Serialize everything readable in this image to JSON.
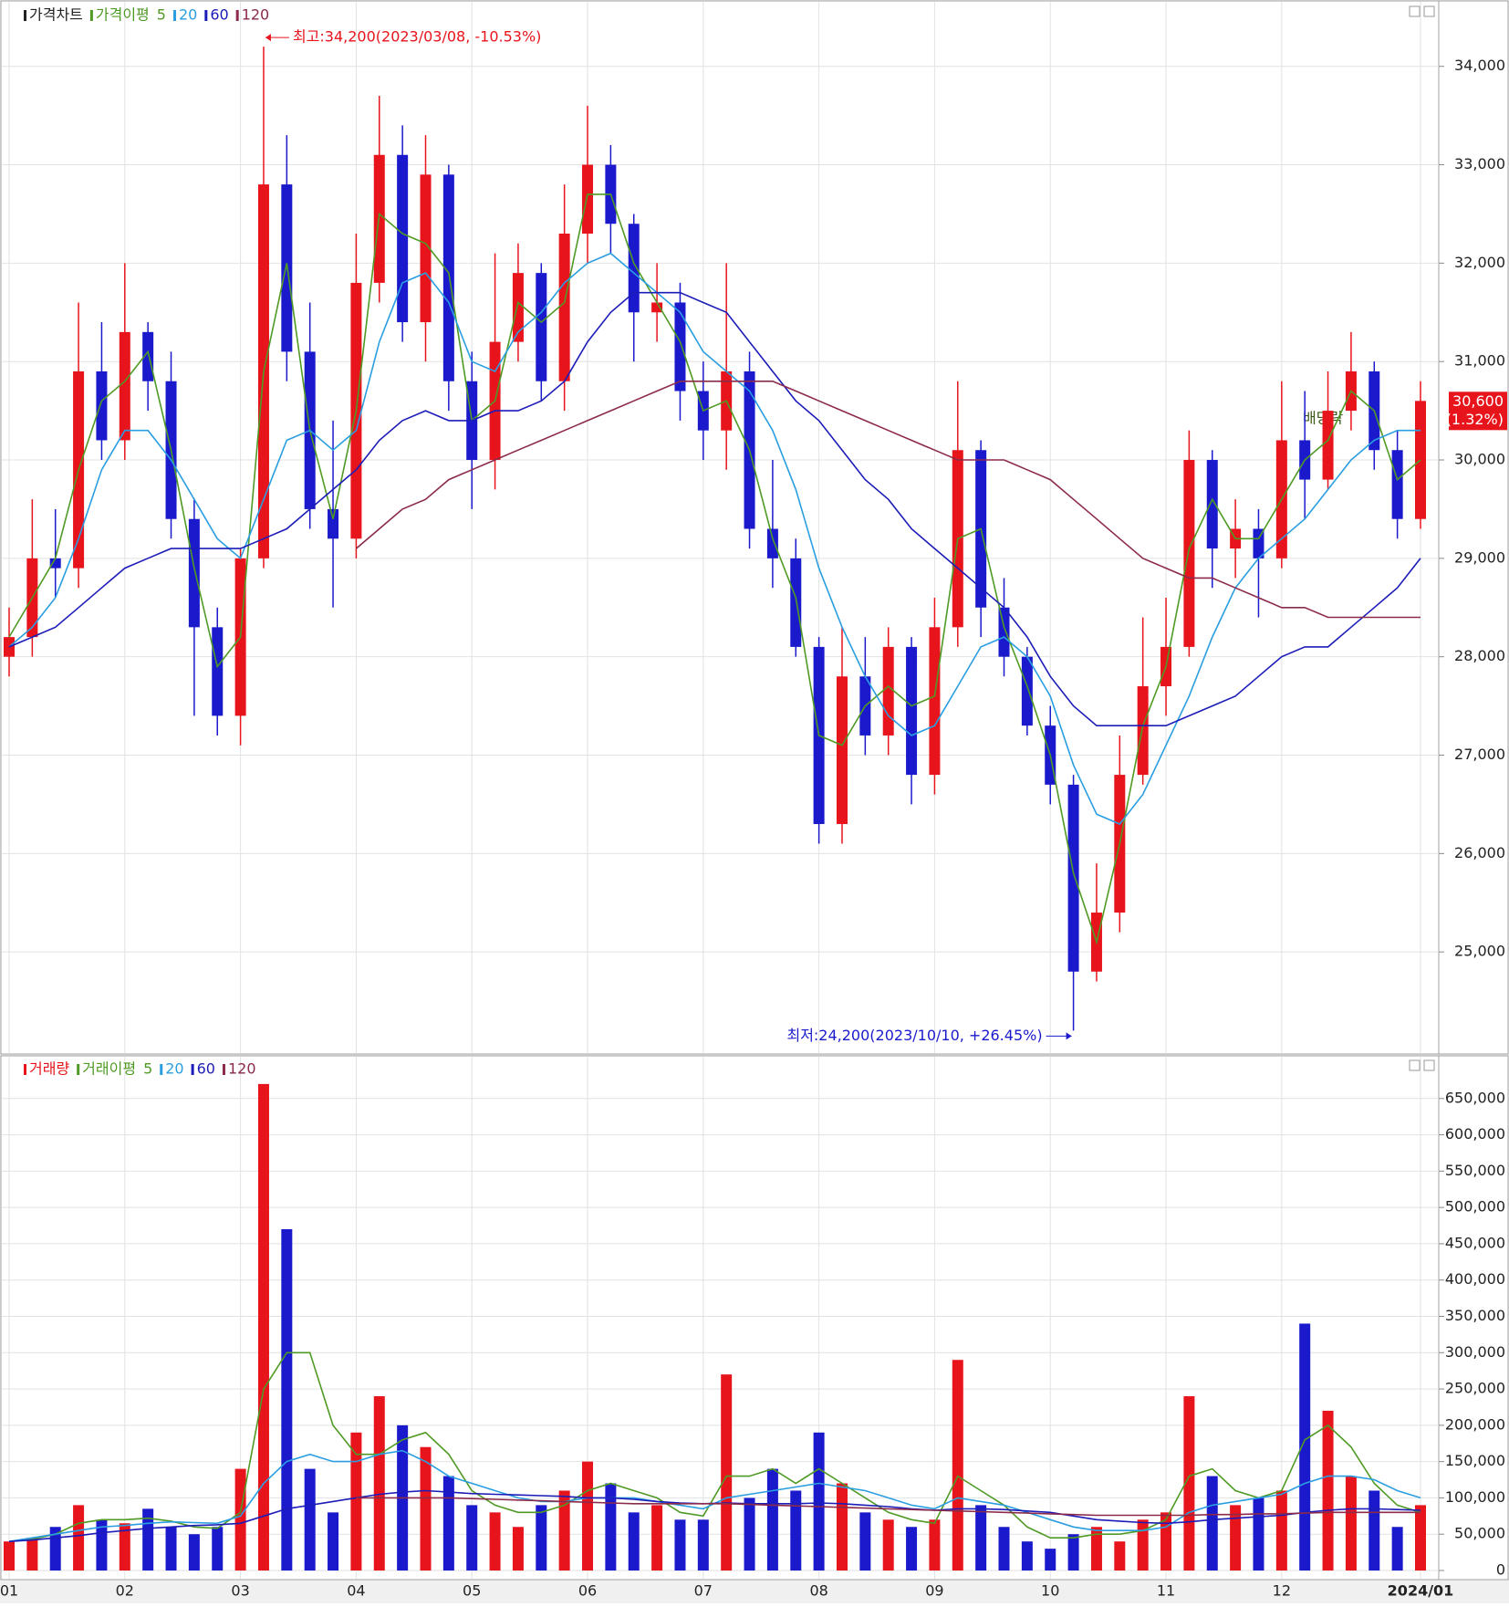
{
  "chart_data": [
    {
      "type": "candlestick",
      "label": "가격차트",
      "ma_label": "가격이평",
      "up_color": "#e8141c",
      "down_color": "#1a1acc",
      "open": [
        28000,
        28200,
        29000,
        28900,
        30900,
        30200,
        31300,
        30800,
        29400,
        28300,
        27400,
        29000,
        32800,
        31100,
        29500,
        29200,
        31800,
        33100,
        31400,
        32900,
        30800,
        30000,
        31200,
        31900,
        30800,
        32300,
        33000,
        32400,
        31500,
        31600,
        30700,
        30300,
        30900,
        29300,
        29000,
        28100,
        26300,
        27800,
        27200,
        28100,
        26800,
        28300,
        30100,
        28500,
        28000,
        27300,
        26700,
        24800,
        25400,
        26800,
        27700,
        28100,
        30000,
        29100,
        29300,
        29000,
        30200,
        29800,
        30500,
        30900,
        30100,
        29400
      ],
      "high": [
        28500,
        29600,
        29500,
        31600,
        31400,
        32000,
        31400,
        31100,
        29600,
        28500,
        29100,
        34200,
        33300,
        31600,
        30400,
        32300,
        33700,
        33400,
        33300,
        33000,
        31100,
        32100,
        32200,
        32000,
        32800,
        33600,
        33200,
        32500,
        32000,
        31800,
        31000,
        32000,
        31100,
        30000,
        29200,
        28200,
        28300,
        28200,
        28300,
        28200,
        28600,
        30800,
        30200,
        28800,
        28100,
        27500,
        26800,
        25900,
        27200,
        28400,
        28600,
        30300,
        30100,
        29600,
        29500,
        30800,
        30700,
        30900,
        31300,
        31000,
        30300,
        30800
      ],
      "low": [
        27800,
        28000,
        28600,
        28700,
        30000,
        30000,
        30500,
        29200,
        27400,
        27200,
        27100,
        28900,
        30800,
        29300,
        28500,
        29000,
        31600,
        31200,
        31000,
        30500,
        29500,
        29700,
        31000,
        30600,
        30500,
        32000,
        32100,
        31000,
        31200,
        30400,
        30000,
        29900,
        29100,
        28700,
        28000,
        26100,
        26100,
        27000,
        27000,
        26500,
        26600,
        28100,
        28200,
        27800,
        27200,
        26500,
        24200,
        24700,
        25200,
        26700,
        27400,
        28000,
        28700,
        28800,
        28400,
        28900,
        29400,
        29700,
        30300,
        29900,
        29200,
        29300
      ],
      "close": [
        28200,
        29000,
        28900,
        30900,
        30200,
        31300,
        30800,
        29400,
        28300,
        27400,
        29000,
        32800,
        31100,
        29500,
        29200,
        31800,
        33100,
        31400,
        32900,
        30800,
        30000,
        31200,
        31900,
        30800,
        32300,
        33000,
        32400,
        31500,
        31600,
        30700,
        30300,
        30900,
        29300,
        29000,
        28100,
        26300,
        27800,
        27200,
        28100,
        26800,
        28300,
        30100,
        28500,
        28000,
        27300,
        26700,
        24800,
        25400,
        26800,
        27700,
        28100,
        30000,
        29100,
        29300,
        29000,
        30200,
        29800,
        30500,
        30900,
        30100,
        29400,
        30600
      ],
      "ma_series": [
        {
          "name": "5",
          "color": "#4f9a24",
          "values": [
            28200,
            28600,
            29000,
            29900,
            30600,
            30800,
            31100,
            30100,
            28900,
            27900,
            28200,
            30900,
            32000,
            30300,
            29400,
            30500,
            32500,
            32300,
            32200,
            31900,
            30400,
            30600,
            31600,
            31400,
            31600,
            32700,
            32700,
            32000,
            31600,
            31200,
            30500,
            30600,
            30100,
            29200,
            28600,
            27200,
            27100,
            27500,
            27700,
            27500,
            27600,
            29200,
            29300,
            28300,
            27700,
            27000,
            25800,
            25100,
            26100,
            27300,
            27900,
            29100,
            29600,
            29200,
            29200,
            29600,
            30000,
            30200,
            30700,
            30500,
            29800,
            30000
          ]
        },
        {
          "name": "20",
          "color": "#2a9ee0",
          "values": [
            28100,
            28300,
            28600,
            29200,
            29900,
            30300,
            30300,
            30000,
            29600,
            29200,
            29000,
            29600,
            30200,
            30300,
            30100,
            30300,
            31200,
            31800,
            31900,
            31600,
            31000,
            30900,
            31300,
            31500,
            31800,
            32000,
            32100,
            31900,
            31700,
            31500,
            31100,
            30900,
            30700,
            30300,
            29700,
            28900,
            28300,
            27800,
            27400,
            27200,
            27300,
            27700,
            28100,
            28200,
            28000,
            27600,
            26900,
            26400,
            26300,
            26600,
            27100,
            27600,
            28200,
            28700,
            29000,
            29200,
            29400,
            29700,
            30000,
            30200,
            30300,
            30300
          ]
        },
        {
          "name": "60",
          "color": "#1c1cb8",
          "values": [
            28100,
            28200,
            28300,
            28500,
            28700,
            28900,
            29000,
            29100,
            29100,
            29100,
            29100,
            29200,
            29300,
            29500,
            29700,
            29900,
            30200,
            30400,
            30500,
            30400,
            30400,
            30500,
            30500,
            30600,
            30800,
            31200,
            31500,
            31700,
            31700,
            31700,
            31600,
            31500,
            31200,
            30900,
            30600,
            30400,
            30100,
            29800,
            29600,
            29300,
            29100,
            28900,
            28700,
            28500,
            28200,
            27800,
            27500,
            27300,
            27300,
            27300,
            27300,
            27400,
            27500,
            27600,
            27800,
            28000,
            28100,
            28100,
            28300,
            28500,
            28700,
            29000
          ]
        },
        {
          "name": "120",
          "color": "#8b2a4a",
          "values": [
            null,
            null,
            null,
            null,
            null,
            null,
            null,
            null,
            null,
            null,
            null,
            null,
            null,
            null,
            null,
            29100,
            29300,
            29500,
            29600,
            29800,
            29900,
            30000,
            30100,
            30200,
            30300,
            30400,
            30500,
            30600,
            30700,
            30800,
            30800,
            30800,
            30800,
            30800,
            30700,
            30600,
            30500,
            30400,
            30300,
            30200,
            30100,
            30000,
            30000,
            30000,
            29900,
            29800,
            29600,
            29400,
            29200,
            29000,
            28900,
            28800,
            28800,
            28700,
            28600,
            28500,
            28500,
            28400,
            28400,
            28400,
            28400,
            28400
          ]
        }
      ],
      "ylim": [
        24000,
        34600
      ],
      "yticks": [
        {
          "value": 25000,
          "label": "25,000"
        },
        {
          "value": 26000,
          "label": "26,000"
        },
        {
          "value": 27000,
          "label": "27,000"
        },
        {
          "value": 28000,
          "label": "28,000"
        },
        {
          "value": 29000,
          "label": "29,000"
        },
        {
          "value": 30000,
          "label": "30,000"
        },
        {
          "value": 31000,
          "label": "31,000"
        },
        {
          "value": 32000,
          "label": "32,000"
        },
        {
          "value": 33000,
          "label": "33,000"
        },
        {
          "value": 34000,
          "label": "34,000"
        }
      ],
      "grid": true,
      "high_label": "최고:34,200(2023/03/08, -10.53%)",
      "low_label": "최저:24,200(2023/10/10, +26.45%)",
      "last_label": "30,600",
      "last_change": "(1.32%)",
      "note": "배당락"
    },
    {
      "type": "bar",
      "label": "거래량",
      "ma_label": "거래이평",
      "categories": [
        "01",
        null,
        null,
        null,
        null,
        "02",
        null,
        null,
        null,
        null,
        "03",
        null,
        null,
        null,
        null,
        "04",
        null,
        null,
        null,
        null,
        "05",
        null,
        null,
        null,
        null,
        "06",
        null,
        null,
        null,
        null,
        "07",
        null,
        null,
        null,
        null,
        "08",
        null,
        null,
        null,
        null,
        "09",
        null,
        null,
        null,
        null,
        "10",
        null,
        null,
        null,
        null,
        "11",
        null,
        null,
        null,
        null,
        "12",
        null,
        null,
        null,
        null,
        null,
        "2024/01"
      ],
      "values": [
        40000,
        45000,
        60000,
        90000,
        70000,
        65000,
        85000,
        60000,
        50000,
        60000,
        140000,
        670000,
        470000,
        140000,
        80000,
        190000,
        240000,
        200000,
        170000,
        130000,
        90000,
        80000,
        60000,
        90000,
        110000,
        150000,
        120000,
        80000,
        90000,
        70000,
        70000,
        270000,
        100000,
        140000,
        110000,
        190000,
        120000,
        80000,
        70000,
        60000,
        70000,
        290000,
        90000,
        60000,
        40000,
        30000,
        50000,
        60000,
        40000,
        70000,
        80000,
        240000,
        130000,
        90000,
        100000,
        110000,
        340000,
        220000,
        130000,
        110000,
        60000,
        90000
      ],
      "ma_series": [
        {
          "name": "5",
          "color": "#4f9a24",
          "values": [
            40000,
            43000,
            50000,
            65000,
            70000,
            70000,
            72000,
            68000,
            60000,
            58000,
            80000,
            250000,
            300000,
            300000,
            200000,
            160000,
            160000,
            180000,
            190000,
            160000,
            110000,
            90000,
            80000,
            80000,
            90000,
            110000,
            120000,
            110000,
            100000,
            80000,
            75000,
            130000,
            130000,
            140000,
            120000,
            140000,
            120000,
            100000,
            80000,
            70000,
            65000,
            130000,
            110000,
            90000,
            60000,
            45000,
            45000,
            50000,
            50000,
            55000,
            70000,
            130000,
            140000,
            110000,
            100000,
            110000,
            180000,
            200000,
            170000,
            120000,
            90000,
            80000
          ]
        },
        {
          "name": "20",
          "color": "#2a9ee0",
          "values": [
            40000,
            45000,
            50000,
            55000,
            60000,
            62000,
            65000,
            67000,
            66000,
            65000,
            75000,
            120000,
            150000,
            160000,
            150000,
            150000,
            160000,
            165000,
            150000,
            130000,
            120000,
            110000,
            100000,
            95000,
            95000,
            100000,
            100000,
            100000,
            95000,
            90000,
            85000,
            100000,
            105000,
            110000,
            115000,
            120000,
            115000,
            110000,
            100000,
            90000,
            85000,
            100000,
            95000,
            90000,
            80000,
            70000,
            60000,
            55000,
            55000,
            55000,
            60000,
            80000,
            90000,
            95000,
            100000,
            105000,
            120000,
            130000,
            130000,
            125000,
            110000,
            100000
          ]
        },
        {
          "name": "60",
          "color": "#1c1cb8",
          "values": [
            40000,
            42000,
            45000,
            48000,
            52000,
            55000,
            58000,
            60000,
            62000,
            63000,
            65000,
            75000,
            85000,
            90000,
            95000,
            100000,
            105000,
            108000,
            110000,
            108000,
            106000,
            105000,
            104000,
            103000,
            102000,
            100000,
            100000,
            98000,
            95000,
            93000,
            92000,
            93000,
            92000,
            92000,
            92000,
            93000,
            92000,
            90000,
            88000,
            85000,
            83000,
            85000,
            85000,
            84000,
            82000,
            80000,
            75000,
            70000,
            68000,
            66000,
            65000,
            67000,
            70000,
            72000,
            74000,
            76000,
            80000,
            83000,
            85000,
            85000,
            84000,
            83000
          ]
        },
        {
          "name": "120",
          "color": "#8b2a4a",
          "values": [
            null,
            null,
            null,
            null,
            null,
            null,
            null,
            null,
            null,
            null,
            null,
            null,
            null,
            null,
            null,
            100000,
            100000,
            100000,
            100000,
            100000,
            99000,
            98000,
            97000,
            96000,
            95000,
            94000,
            93000,
            92000,
            92000,
            92000,
            92000,
            92000,
            91000,
            90000,
            89000,
            88000,
            87000,
            86000,
            85000,
            84000,
            83000,
            82000,
            81000,
            80000,
            79000,
            78000,
            77000,
            76000,
            76000,
            76000,
            76000,
            76000,
            77000,
            77000,
            78000,
            78000,
            79000,
            80000,
            80000,
            80000,
            80000,
            80000
          ]
        }
      ],
      "ylim": [
        0,
        700000
      ],
      "yticks": [
        0,
        {
          "value": 50000,
          "label": "50,000"
        },
        {
          "value": 100000,
          "label": "100,000"
        },
        {
          "value": 150000,
          "label": "150,000"
        },
        {
          "value": 200000,
          "label": "200,000"
        },
        {
          "value": 250000,
          "label": "250,000"
        },
        {
          "value": 300000,
          "label": "300,000"
        },
        {
          "value": 350000,
          "label": "350,000"
        },
        {
          "value": 400000,
          "label": "400,000"
        },
        {
          "value": 450000,
          "label": "450,000"
        },
        {
          "value": 500000,
          "label": "500,000"
        },
        {
          "value": 550000,
          "label": "550,000"
        },
        {
          "value": 600000,
          "label": "600,000"
        },
        {
          "value": 650000,
          "label": "650,000"
        }
      ],
      "grid": true
    }
  ]
}
